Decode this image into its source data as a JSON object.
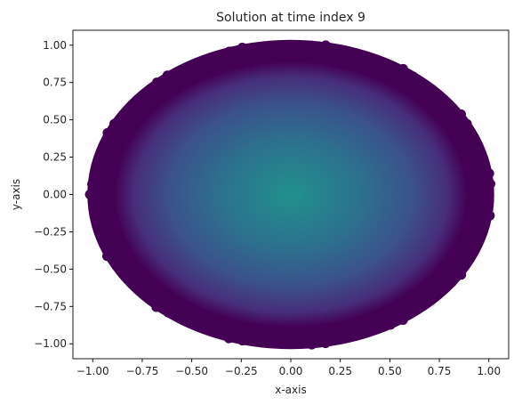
{
  "chart_data": {
    "type": "scatter",
    "title": "Solution at time index 9",
    "xlabel": "x-axis",
    "ylabel": "y-axis",
    "xlim": [
      -1.1,
      1.1
    ],
    "ylim": [
      -1.1,
      1.1
    ],
    "xticks": [
      -1.0,
      -0.75,
      -0.5,
      -0.25,
      0.0,
      0.25,
      0.5,
      0.75,
      1.0
    ],
    "xtick_labels": [
      "−1.00",
      "−0.75",
      "−0.50",
      "−0.25",
      "0.00",
      "0.25",
      "0.50",
      "0.75",
      "1.00"
    ],
    "yticks": [
      -1.0,
      -0.75,
      -0.5,
      -0.25,
      0.0,
      0.25,
      0.5,
      0.75,
      1.0
    ],
    "ytick_labels": [
      "−1.00",
      "−0.75",
      "−0.50",
      "−0.25",
      "0.00",
      "0.25",
      "0.50",
      "0.75",
      "1.00"
    ],
    "domain": {
      "shape": "disk",
      "center": [
        0,
        0
      ],
      "radius": 1.0
    },
    "colormap": "viridis",
    "color_values": {
      "center": 0.55,
      "edge": 0.0
    },
    "colors": {
      "edge": "#440154",
      "mid_outer": "#472d7b",
      "mid": "#3b528b",
      "mid_inner": "#2c728e",
      "center": "#21918c"
    },
    "grid": false,
    "legend": "none"
  }
}
